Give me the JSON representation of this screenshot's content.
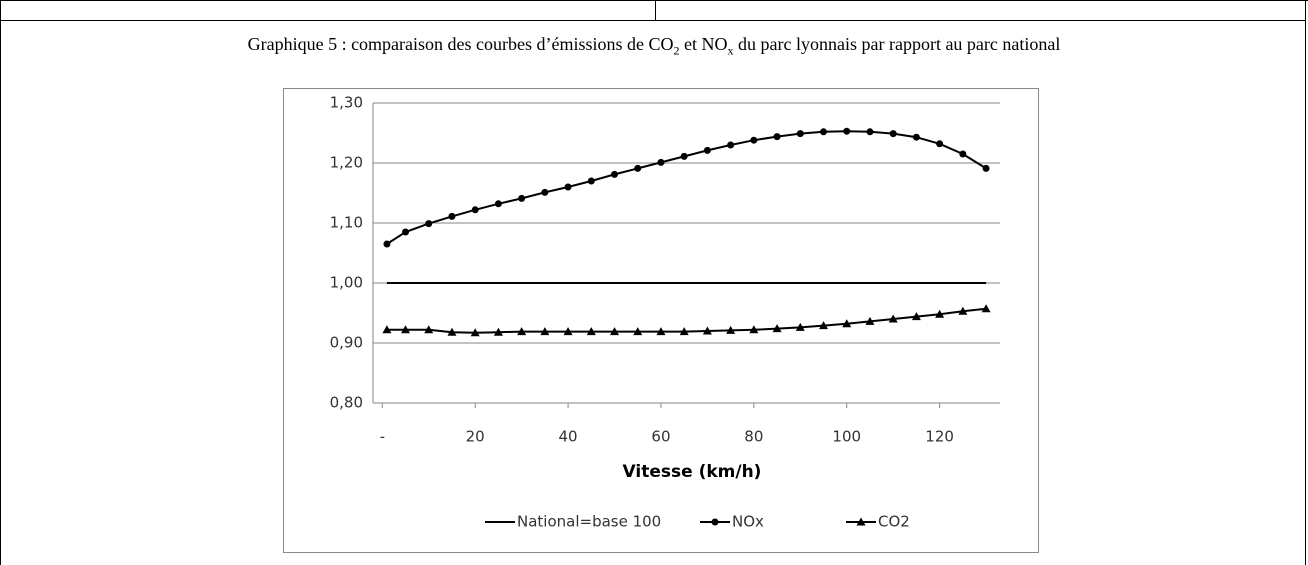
{
  "caption": [
    "Graphique 5 : comparaison des courbes d’émissions de CO",
    "2",
    " et NO",
    "x",
    " du parc lyonnais par rapport au parc national"
  ],
  "chart_data": {
    "type": "line",
    "x_label": "Vitesse (km/h)",
    "x": [
      1,
      5,
      10,
      15,
      20,
      25,
      30,
      35,
      40,
      45,
      50,
      55,
      60,
      65,
      70,
      75,
      80,
      85,
      90,
      95,
      100,
      105,
      110,
      115,
      120,
      125,
      130
    ],
    "xlim": [
      -2,
      133
    ],
    "xticks": [
      {
        "value": 0,
        "label": "-"
      },
      20,
      40,
      60,
      80,
      100,
      120
    ],
    "ylim": [
      0.8,
      1.3
    ],
    "yticks": [
      {
        "value": 0.8,
        "label": "0,80"
      },
      {
        "value": 0.9,
        "label": "0,90"
      },
      {
        "value": 1.0,
        "label": "1,00"
      },
      {
        "value": 1.1,
        "label": "1,10"
      },
      {
        "value": 1.2,
        "label": "1,20"
      },
      {
        "value": 1.3,
        "label": "1,30"
      }
    ],
    "grid": true,
    "legend": "bottom",
    "series": [
      {
        "name": "National=base 100",
        "color": "#000000",
        "marker": "none",
        "values": [
          1,
          1,
          1,
          1,
          1,
          1,
          1,
          1,
          1,
          1,
          1,
          1,
          1,
          1,
          1,
          1,
          1,
          1,
          1,
          1,
          1,
          1,
          1,
          1,
          1,
          1,
          1
        ]
      },
      {
        "name": "NOx",
        "color": "#000000",
        "marker": "circle",
        "values": [
          1.065,
          1.085,
          1.099,
          1.111,
          1.122,
          1.132,
          1.141,
          1.151,
          1.16,
          1.17,
          1.181,
          1.191,
          1.201,
          1.211,
          1.221,
          1.23,
          1.238,
          1.244,
          1.249,
          1.252,
          1.253,
          1.252,
          1.249,
          1.243,
          1.232,
          1.215,
          1.191
        ]
      },
      {
        "name": "CO2",
        "color": "#000000",
        "marker": "triangle",
        "values": [
          0.922,
          0.922,
          0.922,
          0.918,
          0.917,
          0.918,
          0.919,
          0.919,
          0.919,
          0.919,
          0.919,
          0.919,
          0.919,
          0.919,
          0.92,
          0.921,
          0.922,
          0.924,
          0.926,
          0.929,
          0.932,
          0.936,
          0.94,
          0.944,
          0.948,
          0.953,
          0.957
        ]
      }
    ]
  }
}
